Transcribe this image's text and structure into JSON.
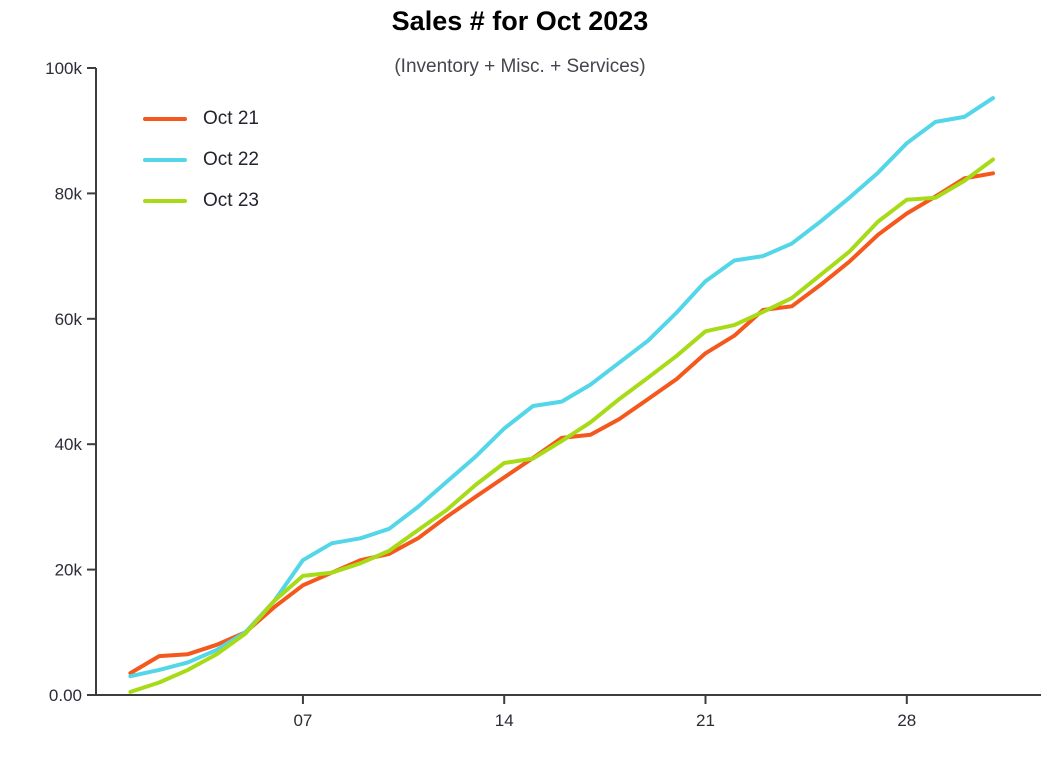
{
  "chart_data": {
    "type": "line",
    "title": "Sales # for Oct 2023",
    "subtitle": "(Inventory + Misc. + Services)",
    "xlabel": "",
    "ylabel": "",
    "x_unit": "day of month (October)",
    "xlim": [
      1,
      31
    ],
    "ylim": [
      0,
      100000
    ],
    "grid": false,
    "legend_position": "top-left",
    "background_color": "#ffffff",
    "axis_color": "#3d3d3d",
    "y_ticks": [
      {
        "label": "0.00",
        "value": 0
      },
      {
        "label": "20k",
        "value": 20000
      },
      {
        "label": "40k",
        "value": 40000
      },
      {
        "label": "60k",
        "value": 60000
      },
      {
        "label": "80k",
        "value": 80000
      },
      {
        "label": "100k",
        "value": 100000
      }
    ],
    "x_ticks": [
      {
        "label": "07",
        "value": 7
      },
      {
        "label": "14",
        "value": 14
      },
      {
        "label": "21",
        "value": 21
      },
      {
        "label": "28",
        "value": 28
      }
    ],
    "x": [
      1,
      2,
      3,
      4,
      5,
      6,
      7,
      8,
      9,
      10,
      11,
      12,
      13,
      14,
      15,
      16,
      17,
      18,
      19,
      20,
      21,
      22,
      23,
      24,
      25,
      26,
      27,
      28,
      29,
      30,
      31
    ],
    "series": [
      {
        "name": "Oct 21",
        "color": "#F4581D",
        "values": [
          3500,
          6200,
          6500,
          8000,
          10000,
          14000,
          17500,
          19500,
          21500,
          22500,
          25000,
          28400,
          31600,
          34700,
          37800,
          41000,
          41500,
          44000,
          47200,
          50400,
          54500,
          57300,
          61400,
          62000,
          65400,
          69100,
          73400,
          76800,
          79500,
          82400,
          83200
        ]
      },
      {
        "name": "Oct 22",
        "color": "#53D6E8",
        "values": [
          3000,
          4000,
          5200,
          7200,
          10000,
          15000,
          21500,
          24200,
          25000,
          26500,
          30000,
          34000,
          38000,
          42500,
          46100,
          46800,
          49500,
          53000,
          56500,
          61000,
          66000,
          69300,
          70000,
          72000,
          75500,
          79300,
          83300,
          88000,
          91400,
          92200,
          95200
        ]
      },
      {
        "name": "Oct 23",
        "color": "#A8DB17",
        "values": [
          500,
          2000,
          4000,
          6500,
          9800,
          15000,
          19000,
          19500,
          21000,
          23000,
          26300,
          29500,
          33500,
          37000,
          37700,
          40500,
          43500,
          47200,
          50600,
          54100,
          58000,
          59000,
          61100,
          63300,
          67000,
          70700,
          75500,
          79000,
          79300,
          82000,
          85400
        ]
      }
    ]
  }
}
